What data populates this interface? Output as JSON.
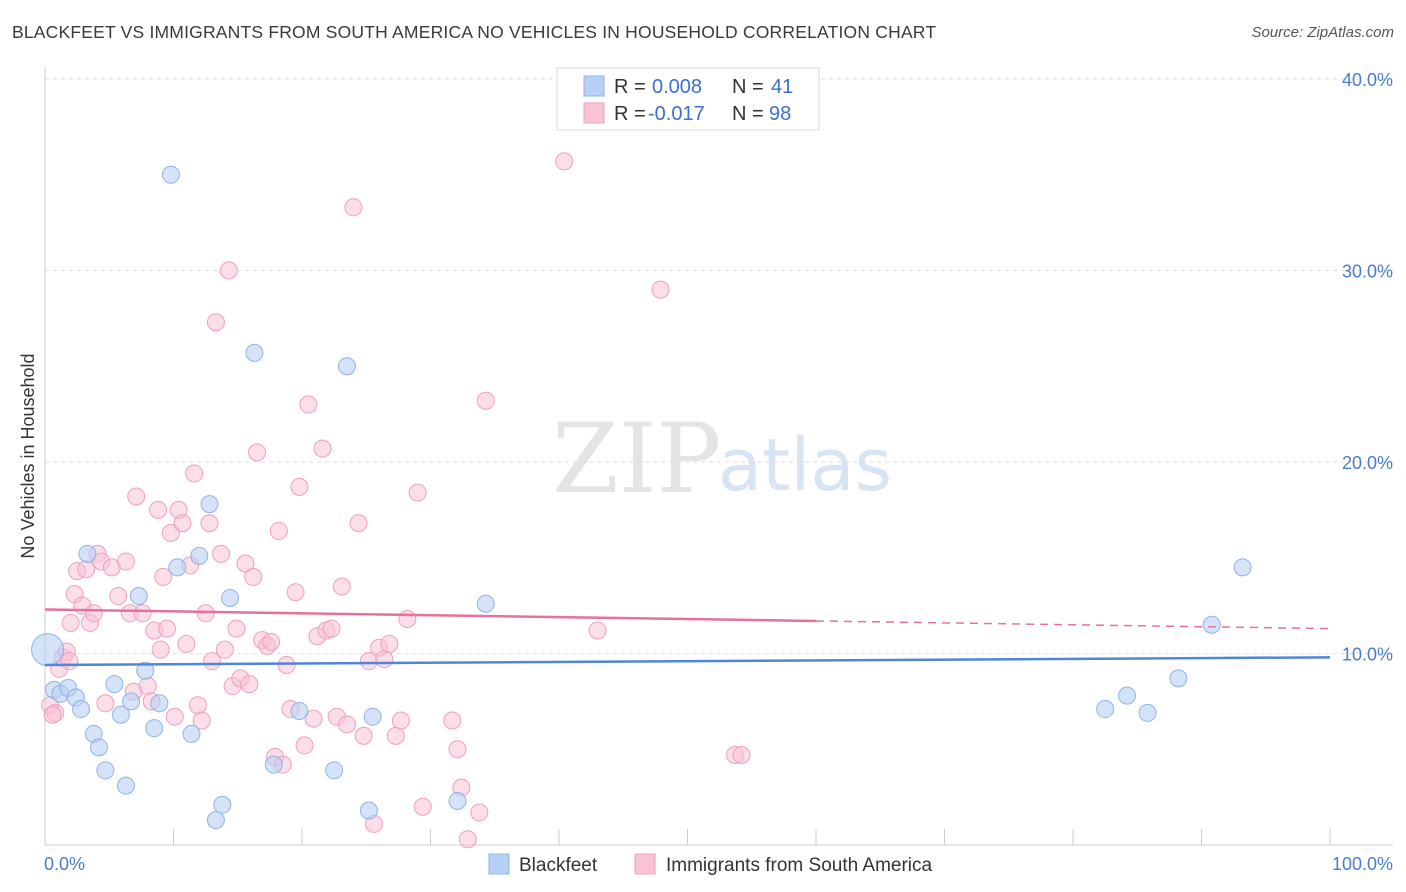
{
  "title": "BLACKFEET VS IMMIGRANTS FROM SOUTH AMERICA NO VEHICLES IN HOUSEHOLD CORRELATION CHART",
  "source": "Source: ZipAtlas.com",
  "watermark": {
    "zip": "ZIP",
    "atlas": "atlas"
  },
  "colors": {
    "blue": "#4f86d9",
    "pink": "#e7719a",
    "blue_fill": "#b8d0f3",
    "pink_fill": "#f8c3d5",
    "grid": "#dddddd",
    "axis": "#cccccc"
  },
  "legend": {
    "rows": [
      {
        "r_label": "R =",
        "r_value": "0.008",
        "n_label": "N =",
        "n_value": "41"
      },
      {
        "r_label": "R =",
        "r_value": "-0.017",
        "n_label": "N =",
        "n_value": "98"
      }
    ]
  },
  "bottom_legend": [
    "Blackfeet",
    "Immigrants from South America"
  ],
  "chart_data": {
    "type": "scatter",
    "title": "BLACKFEET VS IMMIGRANTS FROM SOUTH AMERICA NO VEHICLES IN HOUSEHOLD CORRELATION CHART",
    "xlabel": "",
    "ylabel": "No Vehicles in Household",
    "xlim": [
      0,
      100
    ],
    "ylim": [
      0,
      40
    ],
    "x_tick_labels": [
      "0.0%",
      "100.0%"
    ],
    "y_tick_labels": [
      "10.0%",
      "20.0%",
      "30.0%",
      "40.0%"
    ],
    "y_ticks": [
      10,
      20,
      30,
      40
    ],
    "grid": true,
    "series": [
      {
        "name": "Blackfeet",
        "r": 0.008,
        "n": 41,
        "trend": {
          "x": [
            0,
            100
          ],
          "y": [
            9.4,
            9.8
          ],
          "dashed_from": null
        },
        "points": [
          [
            0.2,
            10.2
          ],
          [
            0.7,
            8.1
          ],
          [
            1.2,
            7.9
          ],
          [
            1.8,
            8.2
          ],
          [
            2.4,
            7.7
          ],
          [
            2.8,
            7.1
          ],
          [
            3.3,
            15.2
          ],
          [
            3.8,
            5.8
          ],
          [
            4.2,
            5.1
          ],
          [
            4.7,
            3.9
          ],
          [
            5.4,
            8.4
          ],
          [
            5.9,
            6.8
          ],
          [
            6.3,
            3.1
          ],
          [
            6.7,
            7.5
          ],
          [
            7.3,
            13.0
          ],
          [
            7.8,
            9.1
          ],
          [
            8.5,
            6.1
          ],
          [
            8.9,
            7.4
          ],
          [
            9.8,
            35.0
          ],
          [
            10.3,
            14.5
          ],
          [
            11.4,
            5.8
          ],
          [
            12.0,
            15.1
          ],
          [
            12.8,
            17.8
          ],
          [
            13.3,
            1.3
          ],
          [
            13.8,
            2.1
          ],
          [
            14.4,
            12.9
          ],
          [
            16.3,
            25.7
          ],
          [
            17.8,
            4.2
          ],
          [
            19.8,
            7.0
          ],
          [
            22.5,
            3.9
          ],
          [
            23.5,
            25.0
          ],
          [
            25.2,
            1.8
          ],
          [
            25.5,
            6.7
          ],
          [
            32.1,
            2.3
          ],
          [
            34.3,
            12.6
          ],
          [
            82.5,
            7.1
          ],
          [
            84.2,
            7.8
          ],
          [
            85.8,
            6.9
          ],
          [
            88.2,
            8.7
          ],
          [
            90.8,
            11.5
          ],
          [
            93.2,
            14.5
          ]
        ]
      },
      {
        "name": "Immigrants from South America",
        "r": -0.017,
        "n": 98,
        "trend": {
          "x": [
            0,
            100
          ],
          "y": [
            12.3,
            11.3
          ],
          "dashed_from": 60
        },
        "points": [
          [
            0.4,
            7.3
          ],
          [
            0.8,
            6.9
          ],
          [
            1.1,
            9.2
          ],
          [
            1.4,
            9.8
          ],
          [
            1.7,
            10.1
          ],
          [
            2.0,
            11.6
          ],
          [
            2.3,
            13.1
          ],
          [
            2.5,
            14.3
          ],
          [
            2.9,
            12.5
          ],
          [
            3.2,
            14.4
          ],
          [
            3.5,
            11.6
          ],
          [
            3.8,
            12.1
          ],
          [
            4.1,
            15.2
          ],
          [
            4.4,
            14.8
          ],
          [
            4.7,
            7.4
          ],
          [
            5.2,
            14.5
          ],
          [
            5.7,
            13.0
          ],
          [
            6.3,
            14.8
          ],
          [
            6.6,
            12.1
          ],
          [
            6.9,
            8.0
          ],
          [
            7.1,
            18.2
          ],
          [
            7.6,
            12.1
          ],
          [
            8.0,
            8.3
          ],
          [
            8.3,
            7.5
          ],
          [
            8.5,
            11.2
          ],
          [
            8.8,
            17.5
          ],
          [
            9.0,
            10.2
          ],
          [
            9.2,
            14.0
          ],
          [
            9.5,
            11.3
          ],
          [
            9.8,
            16.3
          ],
          [
            10.1,
            6.7
          ],
          [
            10.4,
            17.5
          ],
          [
            10.7,
            16.8
          ],
          [
            11.0,
            10.5
          ],
          [
            11.3,
            14.6
          ],
          [
            11.6,
            19.4
          ],
          [
            11.9,
            7.3
          ],
          [
            12.2,
            6.5
          ],
          [
            12.5,
            12.1
          ],
          [
            12.8,
            16.8
          ],
          [
            13.0,
            9.6
          ],
          [
            13.3,
            27.3
          ],
          [
            13.7,
            15.2
          ],
          [
            14.0,
            10.2
          ],
          [
            14.3,
            30.0
          ],
          [
            14.6,
            8.3
          ],
          [
            14.9,
            11.3
          ],
          [
            15.2,
            8.7
          ],
          [
            15.6,
            14.7
          ],
          [
            15.9,
            8.4
          ],
          [
            16.2,
            14.0
          ],
          [
            16.5,
            20.5
          ],
          [
            16.9,
            10.7
          ],
          [
            17.3,
            10.4
          ],
          [
            17.6,
            10.6
          ],
          [
            17.9,
            4.6
          ],
          [
            18.2,
            16.4
          ],
          [
            18.5,
            4.2
          ],
          [
            18.8,
            9.4
          ],
          [
            19.1,
            7.1
          ],
          [
            19.5,
            13.2
          ],
          [
            19.8,
            18.7
          ],
          [
            20.2,
            5.2
          ],
          [
            20.5,
            23.0
          ],
          [
            20.9,
            6.6
          ],
          [
            21.2,
            10.9
          ],
          [
            21.6,
            20.7
          ],
          [
            21.9,
            11.2
          ],
          [
            22.3,
            11.3
          ],
          [
            22.7,
            6.7
          ],
          [
            23.1,
            13.5
          ],
          [
            23.5,
            6.3
          ],
          [
            24.0,
            33.3
          ],
          [
            24.4,
            16.8
          ],
          [
            24.8,
            5.7
          ],
          [
            25.2,
            9.6
          ],
          [
            25.6,
            1.1
          ],
          [
            26.0,
            10.3
          ],
          [
            26.4,
            9.7
          ],
          [
            26.8,
            10.5
          ],
          [
            27.3,
            5.7
          ],
          [
            27.7,
            6.5
          ],
          [
            28.2,
            11.8
          ],
          [
            29.0,
            18.4
          ],
          [
            29.4,
            2.0
          ],
          [
            31.7,
            6.5
          ],
          [
            32.1,
            5.0
          ],
          [
            32.4,
            3.0
          ],
          [
            32.9,
            0.3
          ],
          [
            33.8,
            1.7
          ],
          [
            34.3,
            23.2
          ],
          [
            40.4,
            35.7
          ],
          [
            43.0,
            11.2
          ],
          [
            47.9,
            29.0
          ],
          [
            53.7,
            4.7
          ],
          [
            54.2,
            4.7
          ],
          [
            0.6,
            6.8
          ],
          [
            1.9,
            9.6
          ]
        ]
      }
    ]
  }
}
